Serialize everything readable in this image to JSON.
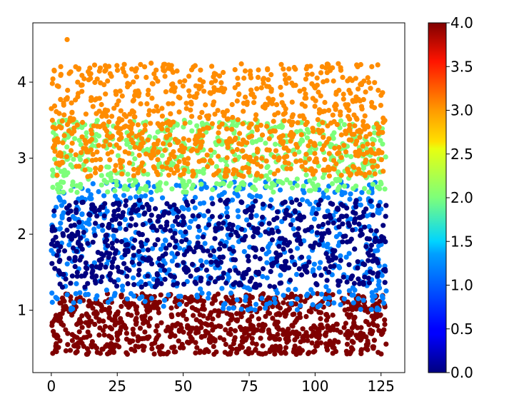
{
  "chart_data": {
    "type": "scatter",
    "title": "",
    "xlabel": "",
    "ylabel": "",
    "xlim": [
      -7,
      134
    ],
    "ylim": [
      0.18,
      4.78
    ],
    "x_ticks": [
      {
        "value": 0,
        "label": "0"
      },
      {
        "value": 25,
        "label": "25"
      },
      {
        "value": 50,
        "label": "50"
      },
      {
        "value": 75,
        "label": "75"
      },
      {
        "value": 100,
        "label": "100"
      },
      {
        "value": 125,
        "label": "125"
      }
    ],
    "y_ticks": [
      {
        "value": 1,
        "label": "1"
      },
      {
        "value": 2,
        "label": "2"
      },
      {
        "value": 3,
        "label": "3"
      },
      {
        "value": 4,
        "label": "4"
      }
    ],
    "colormap": "jet",
    "colorbar": {
      "min": 0.0,
      "max": 4.0,
      "ticks": [
        {
          "value": 0.0,
          "label": "0.0"
        },
        {
          "value": 0.5,
          "label": "0.5"
        },
        {
          "value": 1.0,
          "label": "1.0"
        },
        {
          "value": 1.5,
          "label": "1.5"
        },
        {
          "value": 2.0,
          "label": "2.0"
        },
        {
          "value": 2.5,
          "label": "2.5"
        },
        {
          "value": 3.0,
          "label": "3.0"
        },
        {
          "value": 3.5,
          "label": "3.5"
        },
        {
          "value": 4.0,
          "label": "4.0"
        }
      ]
    },
    "x_range": [
      0,
      127
    ],
    "series": [
      {
        "color_value": 4.0,
        "color": "#7f0000",
        "y_range": [
          0.42,
          1.22
        ],
        "count": 900
      },
      {
        "color_value": 1.0,
        "color": "#0080ff",
        "y_range": [
          1.0,
          2.7
        ],
        "count": 650
      },
      {
        "color_value": 0.0,
        "color": "#000080",
        "y_range": [
          1.3,
          2.45
        ],
        "count": 650
      },
      {
        "color_value": 2.0,
        "color": "#7dff7a",
        "y_range": [
          2.55,
          3.5
        ],
        "count": 600
      },
      {
        "color_value": 3.0,
        "color": "#ff8c00",
        "y_range": [
          2.75,
          4.25
        ],
        "count": 900
      }
    ],
    "outliers": [
      {
        "x": 6,
        "y": 4.56,
        "color_value": 3.0
      }
    ],
    "grid": false,
    "legend": "none"
  }
}
